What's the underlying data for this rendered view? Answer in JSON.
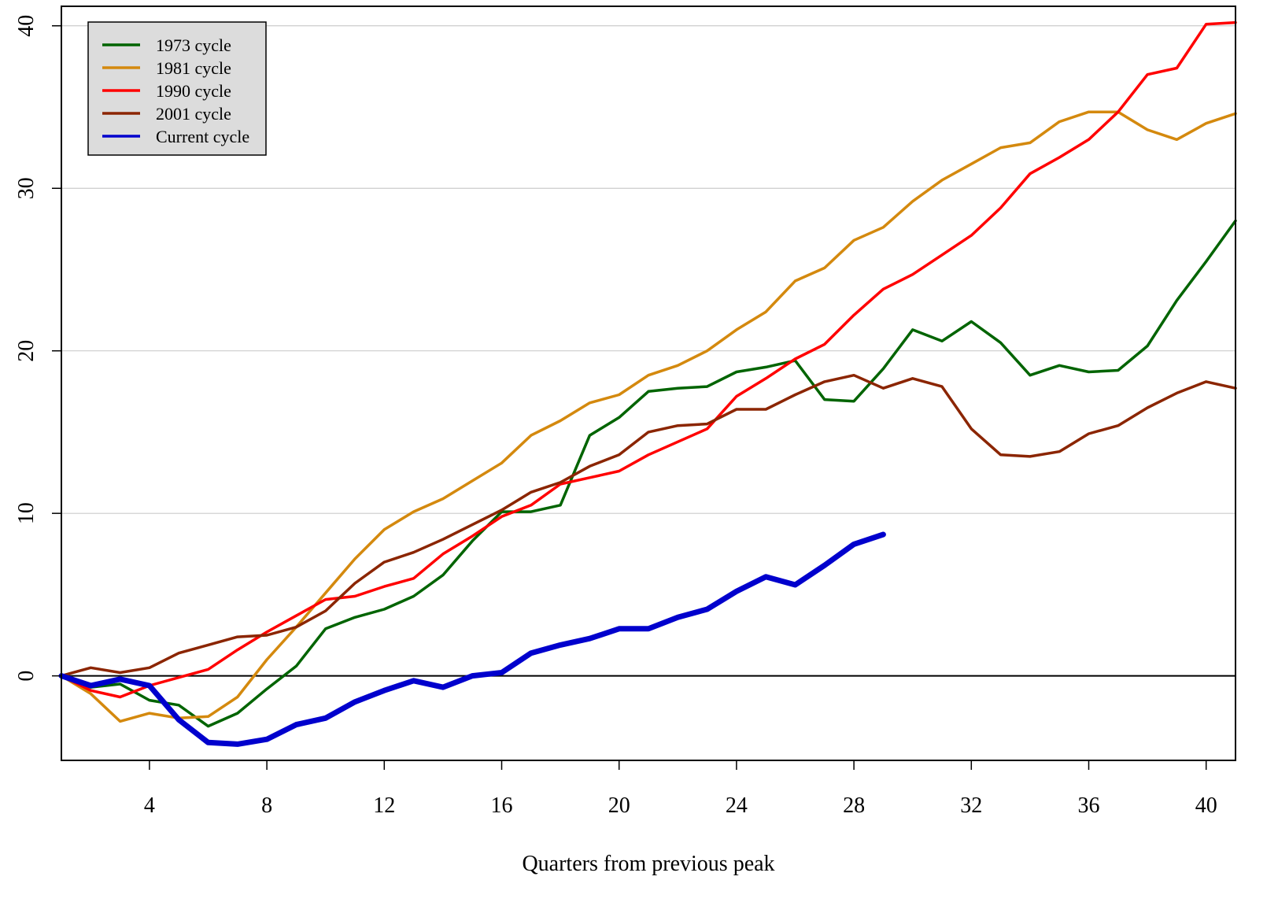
{
  "chart_data": {
    "type": "line",
    "xlabel": "Quarters from previous peak",
    "ylabel": "",
    "xlim": [
      1,
      41
    ],
    "ylim": [
      -5.2,
      41.2
    ],
    "x_ticks": [
      4,
      8,
      12,
      16,
      20,
      24,
      28,
      32,
      36,
      40
    ],
    "y_ticks": [
      0,
      10,
      20,
      30,
      40
    ],
    "grid": "horizontal",
    "reference_line_y": 0,
    "legend_position": "top-left",
    "series": [
      {
        "name": "1973 cycle",
        "color": "#006400",
        "x": [
          1,
          2,
          3,
          4,
          5,
          6,
          7,
          8,
          9,
          10,
          11,
          12,
          13,
          14,
          15,
          16,
          17,
          18,
          19,
          20,
          21,
          22,
          23,
          24,
          25,
          26,
          27,
          28,
          29,
          30,
          31,
          32,
          33,
          34,
          35,
          36,
          37,
          38,
          39,
          40,
          41
        ],
        "values": [
          0,
          -0.7,
          -0.5,
          -1.5,
          -1.8,
          -3.1,
          -2.3,
          -0.8,
          0.6,
          2.9,
          3.6,
          4.1,
          4.9,
          6.2,
          8.3,
          10.1,
          10.1,
          10.5,
          14.8,
          15.9,
          17.5,
          17.7,
          17.8,
          18.7,
          19.0,
          19.4,
          17.0,
          16.9,
          18.9,
          21.3,
          20.6,
          21.8,
          20.5,
          18.5,
          19.1,
          18.7,
          18.8,
          20.3,
          23.1,
          25.5,
          28.0
        ]
      },
      {
        "name": "1981 cycle",
        "color": "#D4890E",
        "x": [
          1,
          2,
          3,
          4,
          5,
          6,
          7,
          8,
          9,
          10,
          11,
          12,
          13,
          14,
          15,
          16,
          17,
          18,
          19,
          20,
          21,
          22,
          23,
          24,
          25,
          26,
          27,
          28,
          29,
          30,
          31,
          32,
          33,
          34,
          35,
          36,
          37,
          38,
          39,
          40,
          41
        ],
        "values": [
          0,
          -1.1,
          -2.8,
          -2.3,
          -2.6,
          -2.5,
          -1.3,
          1.0,
          3.0,
          5.1,
          7.2,
          9.0,
          10.1,
          10.9,
          12.0,
          13.1,
          14.8,
          15.7,
          16.8,
          17.3,
          18.5,
          19.1,
          20.0,
          21.3,
          22.4,
          24.3,
          25.1,
          26.8,
          27.6,
          29.2,
          30.5,
          31.5,
          32.5,
          32.8,
          34.1,
          34.7,
          34.7,
          33.6,
          33.0,
          34.0,
          34.6
        ]
      },
      {
        "name": "1990 cycle",
        "color": "#FF0000",
        "x": [
          1,
          2,
          3,
          4,
          5,
          6,
          7,
          8,
          9,
          10,
          11,
          12,
          13,
          14,
          15,
          16,
          17,
          18,
          19,
          20,
          21,
          22,
          23,
          24,
          25,
          26,
          27,
          28,
          29,
          30,
          31,
          32,
          33,
          34,
          35,
          36,
          37,
          38,
          39,
          40,
          41
        ],
        "values": [
          0,
          -0.9,
          -1.3,
          -0.6,
          -0.1,
          0.4,
          1.6,
          2.7,
          3.7,
          4.7,
          4.9,
          5.5,
          6.0,
          7.5,
          8.6,
          9.8,
          10.5,
          11.8,
          12.2,
          12.6,
          13.6,
          14.4,
          15.2,
          17.2,
          18.3,
          19.5,
          20.4,
          22.2,
          23.8,
          24.7,
          25.9,
          27.1,
          28.8,
          30.9,
          31.9,
          33.0,
          34.7,
          37.0,
          37.4,
          40.1,
          40.2
        ]
      },
      {
        "name": "2001 cycle",
        "color": "#8B2500",
        "x": [
          1,
          2,
          3,
          4,
          5,
          6,
          7,
          8,
          9,
          10,
          11,
          12,
          13,
          14,
          15,
          16,
          17,
          18,
          19,
          20,
          21,
          22,
          23,
          24,
          25,
          26,
          27,
          28,
          29,
          30,
          31,
          32,
          33,
          34,
          35,
          36,
          37,
          38,
          39,
          40,
          41
        ],
        "values": [
          0,
          0.5,
          0.2,
          0.5,
          1.4,
          1.9,
          2.4,
          2.5,
          3.0,
          4.0,
          5.7,
          7.0,
          7.6,
          8.4,
          9.3,
          10.2,
          11.3,
          11.9,
          12.9,
          13.6,
          15.0,
          15.4,
          15.5,
          16.4,
          16.4,
          17.3,
          18.1,
          18.5,
          17.7,
          18.3,
          17.8,
          15.2,
          13.6,
          13.5,
          13.8,
          14.9,
          15.4,
          16.5,
          17.4,
          18.1,
          17.7
        ]
      },
      {
        "name": "Current cycle",
        "color": "#0000CD",
        "x": [
          1,
          2,
          3,
          4,
          5,
          6,
          7,
          8,
          9,
          10,
          11,
          12,
          13,
          14,
          15,
          16,
          17,
          18,
          19,
          20,
          21,
          22,
          23,
          24,
          25,
          26,
          27,
          28,
          29
        ],
        "values": [
          0,
          -0.6,
          -0.2,
          -0.6,
          -2.7,
          -4.1,
          -4.2,
          -3.9,
          -3.0,
          -2.6,
          -1.6,
          -0.9,
          -0.3,
          -0.7,
          0.0,
          0.2,
          1.4,
          1.9,
          2.3,
          2.9,
          2.9,
          3.6,
          4.1,
          5.2,
          6.1,
          5.6,
          6.8,
          8.1,
          8.7
        ]
      }
    ]
  }
}
